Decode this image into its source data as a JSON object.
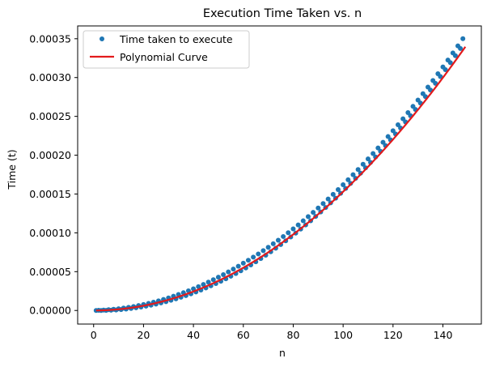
{
  "chart_data": {
    "type": "scatter",
    "title": "Execution Time Taken vs. n",
    "xlabel": "n",
    "ylabel": "Time (t)",
    "xlim": [
      -6.4,
      155.4
    ],
    "ylim": [
      -1.75e-05,
      0.0003665
    ],
    "xticks": [
      0,
      20,
      40,
      60,
      80,
      100,
      120,
      140
    ],
    "xtick_labels": [
      "0",
      "20",
      "40",
      "60",
      "80",
      "100",
      "120",
      "140"
    ],
    "yticks": [
      0,
      5e-05,
      0.0001,
      0.00015,
      0.0002,
      0.00025,
      0.0003,
      0.00035
    ],
    "ytick_labels": [
      "0.00000",
      "0.00005",
      "0.00010",
      "0.00015",
      "0.00020",
      "0.00025",
      "0.00030",
      "0.00035"
    ],
    "grid": false,
    "legend": {
      "position": "top-left"
    },
    "series": [
      {
        "name": "Time taken to execute",
        "kind": "scatter",
        "color": "#1f77b4",
        "x_start": 1,
        "x_end": 148,
        "coefficients": {
          "a": 1.58e-08,
          "b": 0,
          "c": 0
        },
        "zigzag_amplitude": 4e-06
      },
      {
        "name": "Polynomial Curve",
        "kind": "line",
        "color": "#e31a1c",
        "x_start": 1,
        "x_end": 149,
        "coefficients": {
          "a": 1.53e-08,
          "b": 0,
          "c": 0
        }
      }
    ]
  }
}
